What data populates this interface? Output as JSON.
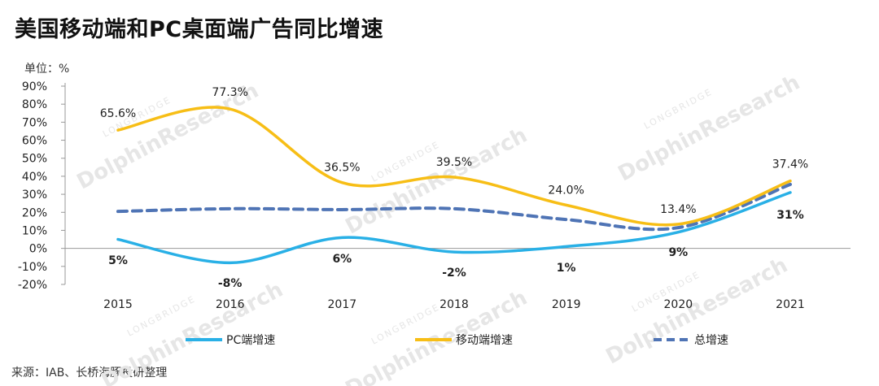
{
  "header": {
    "title": "美国移动端和PC桌面端广告同比增速",
    "unit": "单位：%"
  },
  "footer": {
    "source": "来源：IAB、长桥海豚投研整理"
  },
  "watermark": {
    "brand": "DolphinResearch",
    "sub": "LONGBRIDGE"
  },
  "chart_data": {
    "type": "line",
    "categories": [
      "2015",
      "2016",
      "2017",
      "2018",
      "2019",
      "2020",
      "2021"
    ],
    "ylim": [
      -20,
      90
    ],
    "yticks": [
      -20,
      -10,
      0,
      10,
      20,
      30,
      40,
      50,
      60,
      70,
      80,
      90
    ],
    "ytick_labels": [
      "-20%",
      "-10%",
      "0%",
      "10%",
      "20%",
      "30%",
      "40%",
      "50%",
      "60%",
      "70%",
      "80%",
      "90%"
    ],
    "legend_position": "bottom",
    "grid": false,
    "series": [
      {
        "name": "PC端增速",
        "color": "#29b0e6",
        "style": "solid",
        "values": [
          5,
          -8,
          6,
          -2,
          1,
          9,
          31
        ],
        "labels": [
          "5%",
          "-8%",
          "6%",
          "-2%",
          "1%",
          "9%",
          "31%"
        ]
      },
      {
        "name": "移动端增速",
        "color": "#f7be16",
        "style": "solid",
        "values": [
          65.6,
          77.3,
          36.5,
          39.5,
          24.0,
          13.4,
          37.4
        ],
        "labels": [
          "65.6%",
          "77.3%",
          "36.5%",
          "39.5%",
          "24.0%",
          "13.4%",
          "37.4%"
        ]
      },
      {
        "name": "总增速",
        "color": "#4f74b5",
        "style": "dashed",
        "values": [
          20.5,
          22,
          21.5,
          22,
          16,
          11.5,
          35.5
        ]
      }
    ]
  }
}
